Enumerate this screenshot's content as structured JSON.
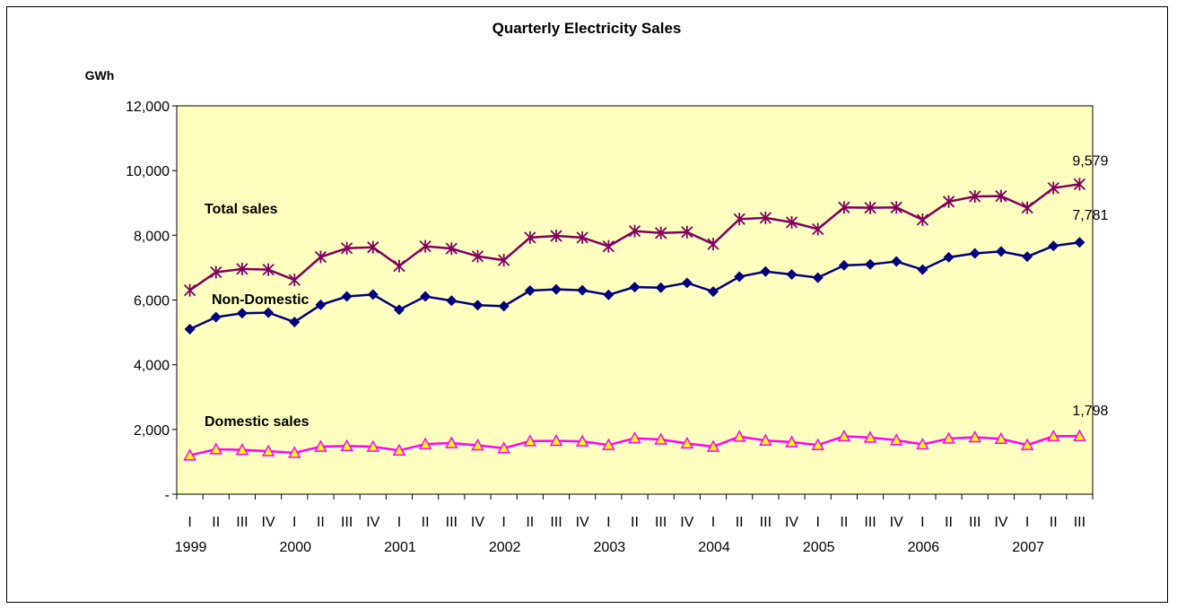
{
  "chart_data": {
    "type": "line",
    "title": "Quarterly Electricity Sales",
    "ylabel": "GWh",
    "ylim": [
      0,
      12000
    ],
    "yticks": [
      0,
      2000,
      4000,
      6000,
      8000,
      10000,
      12000
    ],
    "ytick_labels": [
      "-",
      "2,000",
      "4,000",
      "6,000",
      "8,000",
      "10,000",
      "12,000"
    ],
    "quarters": [
      "I",
      "II",
      "III",
      "IV",
      "I",
      "II",
      "III",
      "IV",
      "I",
      "II",
      "III",
      "IV",
      "I",
      "II",
      "III",
      "IV",
      "I",
      "II",
      "III",
      "IV",
      "I",
      "II",
      "III",
      "IV",
      "I",
      "II",
      "III",
      "IV",
      "I",
      "II",
      "III",
      "IV",
      "I",
      "II",
      "III"
    ],
    "years": [
      "1999",
      "2000",
      "2001",
      "2002",
      "2003",
      "2004",
      "2005",
      "2006",
      "2007"
    ],
    "grid": false,
    "legend": "none",
    "plot_background": "#FFFFC0",
    "series": [
      {
        "name": "Total sales",
        "marker": "asterisk",
        "color": "#800060",
        "values": [
          6300,
          6860,
          6960,
          6940,
          6620,
          7330,
          7600,
          7630,
          7050,
          7660,
          7590,
          7350,
          7230,
          7930,
          7980,
          7930,
          7660,
          8130,
          8070,
          8100,
          7730,
          8500,
          8540,
          8400,
          8190,
          8860,
          8850,
          8860,
          8480,
          9040,
          9200,
          9210,
          8850,
          9460,
          9579
        ],
        "end_label": "9,579"
      },
      {
        "name": "Non-Domestic",
        "marker": "diamond",
        "color": "#000080",
        "values": [
          5100,
          5470,
          5590,
          5610,
          5320,
          5850,
          6110,
          6170,
          5700,
          6110,
          5980,
          5840,
          5810,
          6290,
          6330,
          6300,
          6160,
          6400,
          6380,
          6530,
          6260,
          6720,
          6880,
          6790,
          6690,
          7070,
          7100,
          7190,
          6940,
          7320,
          7440,
          7500,
          7340,
          7670,
          7781
        ],
        "end_label": "7,781"
      },
      {
        "name": "Domestic sales",
        "marker": "triangle",
        "color": "#FF00FF",
        "marker_fill": "#FFFF00",
        "values": [
          1200,
          1390,
          1370,
          1330,
          1280,
          1470,
          1490,
          1470,
          1350,
          1550,
          1580,
          1510,
          1420,
          1640,
          1650,
          1630,
          1520,
          1730,
          1690,
          1570,
          1470,
          1780,
          1660,
          1610,
          1520,
          1790,
          1750,
          1670,
          1540,
          1720,
          1760,
          1710,
          1520,
          1790,
          1798
        ],
        "end_label": "1,798"
      }
    ]
  }
}
